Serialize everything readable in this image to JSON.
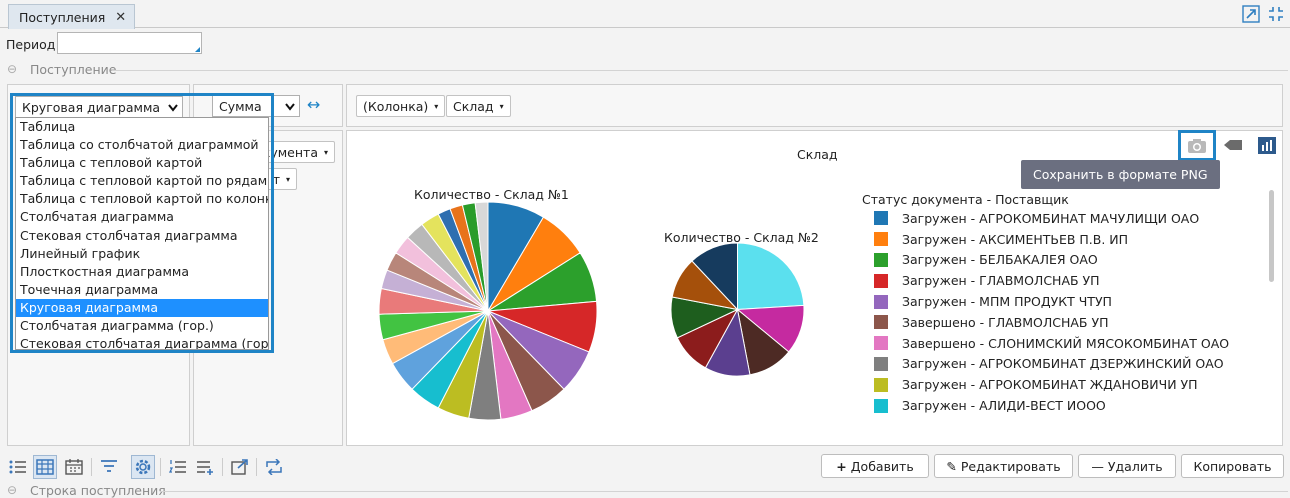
{
  "tab": {
    "label": "Поступления",
    "close": "✕"
  },
  "filters": {
    "period_label": "Период",
    "period_value": ""
  },
  "section": {
    "toggle": "⊖",
    "title": "Поступление"
  },
  "pivot": {
    "renderer_selected": "Круговая диаграмма",
    "renderer_options": [
      "Таблица",
      "Таблица со столбчатой диаграммой",
      "Таблица с тепловой картой",
      "Таблица с тепловой картой по рядам",
      "Таблица с тепловой картой по колонкам",
      "Столбчатая диаграмма",
      "Стековая столбчатая диаграмма",
      "Линейный график",
      "Плосткостная диаграмма",
      "Точечная диаграмма",
      "Круговая диаграмма",
      "Столбчатая диаграмма (гор.)",
      "Стековая столбчатая диаграмма (гор.)"
    ],
    "aggregator_selected": "Сумма",
    "swap_icon": "↔",
    "col_fields": [
      "(Колонка)",
      "Склад"
    ],
    "row_field_partial": "кумента",
    "row_field2_partial": "т",
    "caret": "▾"
  },
  "chart_area": {
    "title": "Склад",
    "tooltip": "Сохранить в формате PNG",
    "camera_icon": "camera-icon",
    "tag_icon": "tag-icon",
    "bars_icon": "bar-chart-icon"
  },
  "chart_data": [
    {
      "type": "pie",
      "title": "Количество - Склад №1",
      "values": [
        9,
        8,
        8,
        8,
        7,
        6,
        5,
        5,
        5,
        5,
        5,
        4,
        4,
        4,
        3,
        3,
        3,
        3,
        3,
        2,
        2,
        2,
        2
      ],
      "colors": [
        "#1f77b4",
        "#ff7f0e",
        "#2ca02c",
        "#d62728",
        "#9467bd",
        "#8c564b",
        "#e377c2",
        "#7f7f7f",
        "#bcbd22",
        "#17becf",
        "#5fa2dd",
        "#ffbb78",
        "#42c342",
        "#e97a7a",
        "#c5b0d5",
        "#b8867a",
        "#f2c0dc",
        "#b8b8b8",
        "#e4e35d",
        "#2f6fb0",
        "#e8731b",
        "#2a9c2a",
        "#d8d8d8"
      ]
    },
    {
      "type": "pie",
      "title": "Количество - Склад №2",
      "values": [
        24,
        12,
        11,
        11,
        10,
        10,
        10,
        12
      ],
      "colors": [
        "#5be0ee",
        "#c52aa0",
        "#4d2a24",
        "#5b3f8f",
        "#8c1c1c",
        "#1e5e1e",
        "#a5500b",
        "#163b5e"
      ]
    }
  ],
  "legend": {
    "title": "Статус документа - Поставщик",
    "items": [
      {
        "label": "Загружен - АГРОКОМБИНАТ МАЧУЛИЩИ ОАО",
        "color": "#1f77b4"
      },
      {
        "label": "Загружен - АКСИМЕНТЬЕВ П.В. ИП",
        "color": "#ff7f0e"
      },
      {
        "label": "Загружен - БЕЛБАКАЛЕЯ ОАО",
        "color": "#2ca02c"
      },
      {
        "label": "Загружен - ГЛАВМОЛСНАБ УП",
        "color": "#d62728"
      },
      {
        "label": "Загружен - МПМ ПРОДУКТ ЧТУП",
        "color": "#9467bd"
      },
      {
        "label": "Завершено - ГЛАВМОЛСНАБ УП",
        "color": "#8c564b"
      },
      {
        "label": "Завершено - СЛОНИМСКИЙ МЯСОКОМБИНАТ ОАО",
        "color": "#e377c2"
      },
      {
        "label": "Загружен - АГРОКОМБИНАТ ДЗЕРЖИНСКИЙ ОАО",
        "color": "#7f7f7f"
      },
      {
        "label": "Загружен - АГРОКОМБИНАТ ЖДАНОВИЧИ УП",
        "color": "#bcbd22"
      },
      {
        "label": "Загружен - АЛИДИ-ВЕСТ ИОOO",
        "color": "#17becf"
      }
    ]
  },
  "buttons": {
    "add": "Добавить",
    "add_icon": "+",
    "edit": "Редактировать",
    "edit_icon": "✎",
    "delete": "Удалить",
    "delete_icon": "—",
    "copy": "Копировать"
  },
  "footer": {
    "section2_toggle": "⊖",
    "section2_title": "Строка поступления"
  }
}
